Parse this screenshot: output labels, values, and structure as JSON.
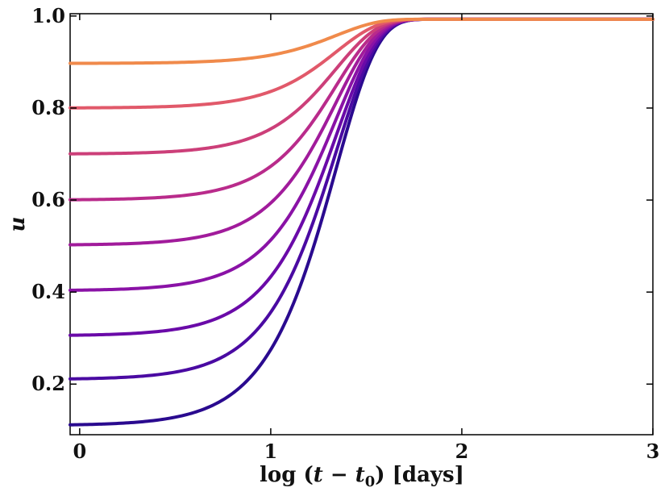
{
  "chart_data": {
    "type": "line",
    "title": "",
    "xlabel_parts": {
      "prefix": "log (",
      "var": "t",
      "minus": " − ",
      "sub_var": "t",
      "sub": "0",
      "suffix": ") [days]"
    },
    "ylabel": "u",
    "xlim": [
      -0.05,
      3.0
    ],
    "ylim": [
      0.09,
      1.005
    ],
    "xticks": [
      0,
      1,
      2,
      3
    ],
    "xtick_labels": [
      "0",
      "1",
      "2",
      "3"
    ],
    "yticks": [
      0.2,
      0.4,
      0.6,
      0.8,
      1.0
    ],
    "ytick_labels": [
      "0.2",
      "0.4",
      "0.6",
      "0.8",
      "1.0"
    ],
    "grid": false,
    "series": [
      {
        "name": "u0=0.11",
        "u0": 0.11,
        "color": "#2a0a8f"
      },
      {
        "name": "u0=0.21",
        "u0": 0.21,
        "color": "#4a0aa2"
      },
      {
        "name": "u0=0.305",
        "u0": 0.305,
        "color": "#6a0aa8"
      },
      {
        "name": "u0=0.403",
        "u0": 0.403,
        "color": "#8a12a6"
      },
      {
        "name": "u0=0.502",
        "u0": 0.502,
        "color": "#a11b9b"
      },
      {
        "name": "u0=0.60",
        "u0": 0.6,
        "color": "#b92b8b"
      },
      {
        "name": "u0=0.70",
        "u0": 0.7,
        "color": "#cc3f79"
      },
      {
        "name": "u0=0.80",
        "u0": 0.8,
        "color": "#e1596a"
      },
      {
        "name": "u0=0.897",
        "u0": 0.897,
        "color": "#f08a4b"
      }
    ],
    "u_final": 0.993,
    "transition_scale_days": 22
  }
}
